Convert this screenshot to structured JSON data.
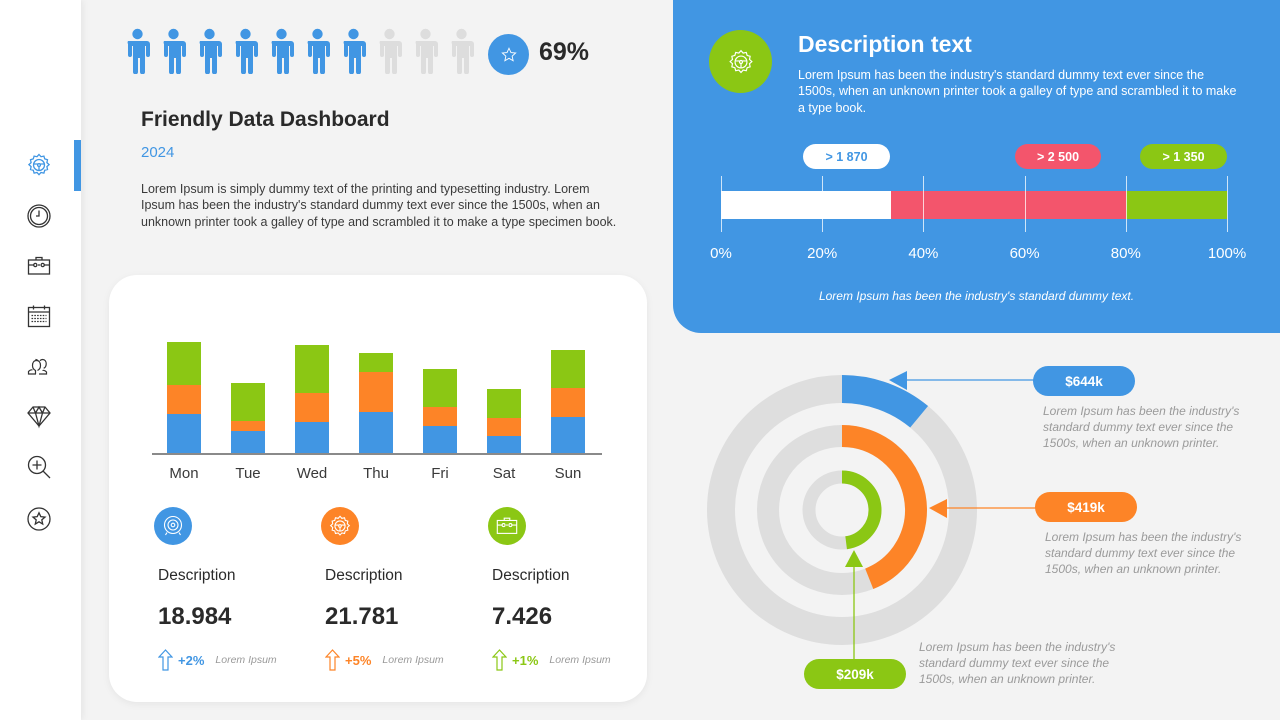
{
  "sidebar": {
    "active_index": 0,
    "items": [
      {
        "icon": "gear-steering-icon",
        "active": true
      },
      {
        "icon": "clock-icon",
        "active": false
      },
      {
        "icon": "toolbox-icon",
        "active": false
      },
      {
        "icon": "calendar-icon",
        "active": false
      },
      {
        "icon": "users-icon",
        "active": false
      },
      {
        "icon": "diamond-icon",
        "active": false
      },
      {
        "icon": "zoom-in-icon",
        "active": false
      },
      {
        "icon": "star-icon",
        "active": false
      }
    ]
  },
  "people_meter": {
    "total": 10,
    "filled": 7,
    "filled_color": "#4196e3",
    "empty_color": "#dddddd",
    "badge_icon": "star-icon",
    "percent": "69%"
  },
  "header": {
    "title": "Friendly Data Dashboard",
    "year": "2024",
    "intro": "Lorem Ipsum is simply dummy text of the printing and typesetting industry. Lorem Ipsum has been the industry's standard dummy text ever since the 1500s, when an unknown printer took a galley of type and scrambled it to make a type specimen book."
  },
  "colors": {
    "blue": "#4196e3",
    "orange": "#fd8427",
    "green": "#8bc714",
    "red": "#f3556c",
    "grey_ring": "#dedede",
    "background": "#f3f3f3"
  },
  "chart_data": [
    {
      "type": "bar",
      "stacked": true,
      "title": "",
      "xlabel": "",
      "ylabel": "",
      "categories": [
        "Mon",
        "Tue",
        "Wed",
        "Thu",
        "Fri",
        "Sat",
        "Sun"
      ],
      "series": [
        {
          "name": "Blue",
          "color": "#4196e3",
          "values": [
            41,
            24,
            33,
            43,
            29,
            19,
            38
          ]
        },
        {
          "name": "Orange",
          "color": "#fd8427",
          "values": [
            29,
            10,
            29,
            40,
            19,
            18,
            29
          ]
        },
        {
          "name": "Green",
          "color": "#8bc714",
          "values": [
            43,
            38,
            48,
            19,
            38,
            29,
            38
          ]
        }
      ],
      "grid": false,
      "legend": null
    },
    {
      "type": "bar",
      "orientation": "horizontal-stacked-100",
      "ticks": [
        "0%",
        "20%",
        "40%",
        "60%",
        "80%",
        "100%"
      ],
      "segments": [
        {
          "label": "> 1 870",
          "from": 0,
          "to": 33.5,
          "color": "#ffffff",
          "text_color": "#4196e3"
        },
        {
          "label": "> 2 500",
          "from": 33.5,
          "to": 80,
          "color": "#f3556c",
          "text_color": "#ffffff"
        },
        {
          "label": ">  1 350",
          "from": 80,
          "to": 100,
          "color": "#8bc714",
          "text_color": "#ffffff"
        }
      ]
    },
    {
      "type": "pie",
      "variant": "radial-rings",
      "rings": [
        {
          "label": "$644k",
          "color": "#4196e3",
          "fraction": 0.11
        },
        {
          "label": "$419k",
          "color": "#fd8427",
          "fraction": 0.44
        },
        {
          "label": "$209k",
          "color": "#8bc714",
          "fraction": 0.48
        }
      ]
    }
  ],
  "stats": [
    {
      "icon": "target-icon",
      "color": "#4196e3",
      "label": "Description",
      "value": "18.984",
      "change": "+2%",
      "note": "Lorem Ipsum"
    },
    {
      "icon": "gear-steering-icon",
      "color": "#fd8427",
      "label": "Description",
      "value": "21.781",
      "change": "+5%",
      "note": "Lorem Ipsum"
    },
    {
      "icon": "toolbox-icon",
      "color": "#8bc714",
      "label": "Description",
      "value": "7.426",
      "change": "+1%",
      "note": "Lorem Ipsum"
    }
  ],
  "panel": {
    "icon": "gear-steering-icon",
    "title": "Description text",
    "text": "Lorem Ipsum has been the industry's standard dummy text ever since the 1500s, when an unknown printer took a galley of type and scrambled it to make a type book.",
    "pills": [
      "> 1 870",
      "> 2 500",
      ">  1 350"
    ],
    "ticks": [
      "0%",
      "20%",
      "40%",
      "60%",
      "80%",
      "100%"
    ],
    "footer": "Lorem Ipsum has been the industry's standard dummy text."
  },
  "callouts": [
    {
      "value": "$644k",
      "color": "#4196e3",
      "text": "Lorem Ipsum has been the industry's standard dummy text ever since the 1500s, when an unknown printer."
    },
    {
      "value": "$419k",
      "color": "#fd8427",
      "text": "Lorem Ipsum has been the industry's standard dummy text ever since the 1500s, when an unknown printer."
    },
    {
      "value": "$209k",
      "color": "#8bc714",
      "text": "Lorem Ipsum has been the industry's standard dummy text ever since the 1500s, when an unknown printer."
    }
  ]
}
